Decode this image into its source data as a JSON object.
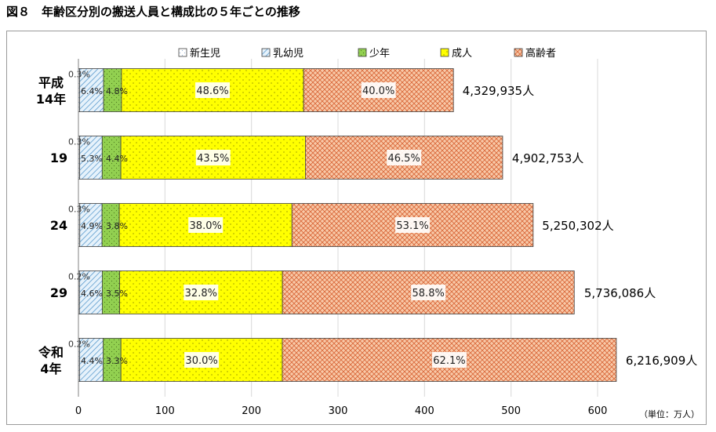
{
  "title": "図８　年齢区分別の搬送人員と構成比の５年ごとの推移",
  "unit_label": "（単位：万人）",
  "chart_data": {
    "type": "bar",
    "orientation": "horizontal",
    "stacked": true,
    "categories": [
      {
        "label": [
          "平成",
          "14年"
        ],
        "total": 4329935,
        "total_label": "4,329,935人"
      },
      {
        "label": [
          "19"
        ],
        "total": 4902753,
        "total_label": "4,902,753人"
      },
      {
        "label": [
          "24"
        ],
        "total": 5250302,
        "total_label": "5,250,302人"
      },
      {
        "label": [
          "29"
        ],
        "total": 5736086,
        "total_label": "5,736,086人"
      },
      {
        "label": [
          "令和",
          "4年"
        ],
        "total": 6216909,
        "total_label": "6,216,909人"
      }
    ],
    "series": [
      {
        "name": "新生児",
        "color": "#ffffff",
        "pattern": "dots-light",
        "values": [
          0.3,
          0.3,
          0.3,
          0.2,
          0.2
        ],
        "labels": [
          "0.3%",
          "0.3%",
          "0.3%",
          "0.2%",
          "0.2%"
        ]
      },
      {
        "name": "乳幼児",
        "color": "#dcecf8",
        "pattern": "diagonal-hatch",
        "values": [
          6.4,
          5.3,
          4.9,
          4.6,
          4.4
        ],
        "labels": [
          "6.4%",
          "5.3%",
          "4.9%",
          "4.6%",
          "4.4%"
        ]
      },
      {
        "name": "少年",
        "color": "#92d050",
        "pattern": "dots",
        "values": [
          4.8,
          4.4,
          3.8,
          3.5,
          3.3
        ],
        "labels": [
          "4.8%",
          "4.4%",
          "3.8%",
          "3.5%",
          "3.3%"
        ]
      },
      {
        "name": "成人",
        "color": "#ffff00",
        "pattern": "dots",
        "values": [
          48.6,
          43.5,
          38.0,
          32.8,
          30.0
        ],
        "labels": [
          "48.6%",
          "43.5%",
          "38.0%",
          "32.8%",
          "30.0%"
        ]
      },
      {
        "name": "高齢者",
        "color": "#f8cbad",
        "pattern": "crosshatch",
        "values": [
          40.0,
          46.5,
          53.1,
          58.8,
          62.1
        ],
        "labels": [
          "40.0%",
          "46.5%",
          "53.1%",
          "58.8%",
          "62.1%"
        ]
      }
    ],
    "xaxis": {
      "min": 0,
      "max": 600,
      "ticks": [
        0,
        100,
        200,
        300,
        400,
        500,
        600
      ]
    },
    "grid": true,
    "legend_position": "top"
  }
}
